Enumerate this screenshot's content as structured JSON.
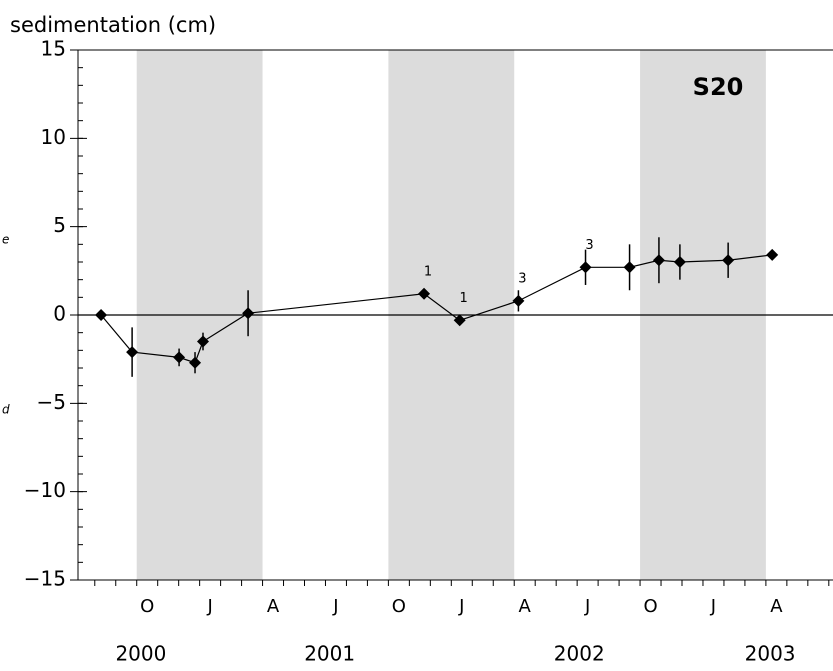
{
  "chart_data": {
    "type": "line",
    "title": "sedimentation (cm)",
    "panel_label": "S20",
    "left_margin_fragments": [
      "e",
      "d"
    ],
    "xlim": [
      -0.8,
      35.2
    ],
    "ylim": [
      -15,
      15
    ],
    "yticks": [
      {
        "value": -15,
        "label": "−15"
      },
      {
        "value": -10,
        "label": "−10"
      },
      {
        "value": -5,
        "label": "−5"
      },
      0,
      5,
      10,
      15
    ],
    "y_minor_step": 1,
    "x_minor_step": 1,
    "xticks": [
      {
        "value": 2.5,
        "label": "O"
      },
      {
        "value": 5.5,
        "label": "J"
      },
      {
        "value": 8.5,
        "label": "A"
      },
      {
        "value": 11.5,
        "label": "J"
      },
      {
        "value": 14.5,
        "label": "O"
      },
      {
        "value": 17.5,
        "label": "J"
      },
      {
        "value": 20.5,
        "label": "A"
      },
      {
        "value": 23.5,
        "label": "J"
      },
      {
        "value": 26.5,
        "label": "O"
      },
      {
        "value": 29.5,
        "label": "J"
      },
      {
        "value": 32.5,
        "label": "A"
      }
    ],
    "year_labels": [
      {
        "value": 2.2,
        "label": "2000"
      },
      {
        "value": 11.2,
        "label": "2001"
      },
      {
        "value": 23.1,
        "label": "2002"
      },
      {
        "value": 32.2,
        "label": "2003"
      }
    ],
    "shaded_ranges": [
      [
        2,
        8
      ],
      [
        14,
        20
      ],
      [
        26,
        32
      ]
    ],
    "shade_color": "#dcdcdc",
    "zero_line": true,
    "series": [
      {
        "color": "#000000",
        "x": [
          0.3,
          1.78,
          4.02,
          4.78,
          5.16,
          7.31,
          15.7,
          17.4,
          20.2,
          23.4,
          25.5,
          26.9,
          27.9,
          30.2,
          32.3
        ],
        "values": [
          0,
          -2.1,
          -2.4,
          -2.7,
          -1.5,
          0.1,
          1.2,
          -0.3,
          0.8,
          2.7,
          2.7,
          3.1,
          3.0,
          3.1,
          3.4
        ],
        "errors": [
          0,
          1.4,
          0.5,
          0.6,
          0.5,
          1.3,
          0,
          0,
          0.6,
          1.0,
          1.3,
          1.3,
          1.0,
          1.0,
          0
        ]
      }
    ],
    "annotations": [
      {
        "text": "1",
        "x": 15.7,
        "y": 1.2
      },
      {
        "text": "1",
        "x": 17.4,
        "y": -0.3
      },
      {
        "text": "3",
        "x": 20.2,
        "y": 0.8
      },
      {
        "text": "3",
        "x": 23.4,
        "y": 2.7
      }
    ]
  }
}
